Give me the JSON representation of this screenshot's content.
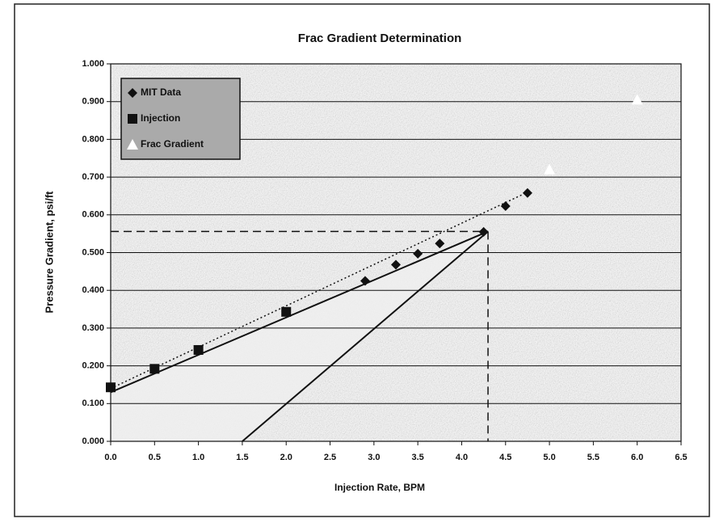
{
  "chart_data": {
    "type": "scatter",
    "title": "Frac Gradient Determination",
    "x_label": "Injection Rate, BPM",
    "y_label": "Pressure Gradient, psi/ft",
    "xlim": [
      0,
      6.5
    ],
    "ylim": [
      0,
      1
    ],
    "xticks": [
      {
        "value": 0,
        "label": "0.0"
      },
      {
        "value": 0.5,
        "label": "0.5"
      },
      {
        "value": 1,
        "label": "1.0"
      },
      {
        "value": 1.5,
        "label": "1.5"
      },
      {
        "value": 2,
        "label": "2.0"
      },
      {
        "value": 2.5,
        "label": "2.5"
      },
      {
        "value": 3,
        "label": "3.0"
      },
      {
        "value": 3.5,
        "label": "3.5"
      },
      {
        "value": 4,
        "label": "4.0"
      },
      {
        "value": 4.5,
        "label": "4.5"
      },
      {
        "value": 5,
        "label": "5.0"
      },
      {
        "value": 5.5,
        "label": "5.5"
      },
      {
        "value": 6,
        "label": "6.0"
      },
      {
        "value": 6.5,
        "label": "6.5"
      }
    ],
    "yticks": [
      {
        "value": 0,
        "label": "0.000"
      },
      {
        "value": 0.1,
        "label": "0.100"
      },
      {
        "value": 0.2,
        "label": "0.200"
      },
      {
        "value": 0.3,
        "label": "0.300"
      },
      {
        "value": 0.4,
        "label": "0.400"
      },
      {
        "value": 0.5,
        "label": "0.500"
      },
      {
        "value": 0.6,
        "label": "0.600"
      },
      {
        "value": 0.7,
        "label": "0.700"
      },
      {
        "value": 0.8,
        "label": "0.800"
      },
      {
        "value": 0.9,
        "label": "0.900"
      },
      {
        "value": 1,
        "label": "1.000"
      }
    ],
    "grid": true,
    "legend": "upper left",
    "series": [
      {
        "name": "MIT Data",
        "marker": "diamond",
        "color": "#111111",
        "x": [
          2.9,
          3.25,
          3.5,
          3.75,
          4.25,
          4.5,
          4.75
        ],
        "values": [
          0.425,
          0.468,
          0.497,
          0.524,
          0.555,
          0.623,
          0.658
        ]
      },
      {
        "name": "Injection",
        "marker": "square",
        "color": "#111111",
        "x": [
          0,
          0.5,
          1,
          2
        ],
        "values": [
          0.143,
          0.192,
          0.242,
          0.343
        ]
      },
      {
        "name": "Frac Gradient",
        "marker": "triangle",
        "color": "#ffffff",
        "x": [
          5,
          6
        ],
        "values": [
          0.72,
          0.905
        ]
      }
    ],
    "lines": [
      {
        "style": "solid",
        "x": [
          0,
          4.3
        ],
        "values": [
          0.13,
          0.556
        ]
      },
      {
        "style": "dotted",
        "x": [
          0,
          4.75
        ],
        "values": [
          0.14,
          0.66
        ]
      },
      {
        "style": "solid",
        "x": [
          1.5,
          4.3
        ],
        "values": [
          0,
          0.556
        ]
      },
      {
        "style": "dashed",
        "x": [
          0,
          4.3
        ],
        "values": [
          0.556,
          0.556
        ]
      },
      {
        "style": "dashed",
        "x": [
          4.3,
          4.3
        ],
        "values": [
          0.556,
          0
        ]
      }
    ]
  }
}
